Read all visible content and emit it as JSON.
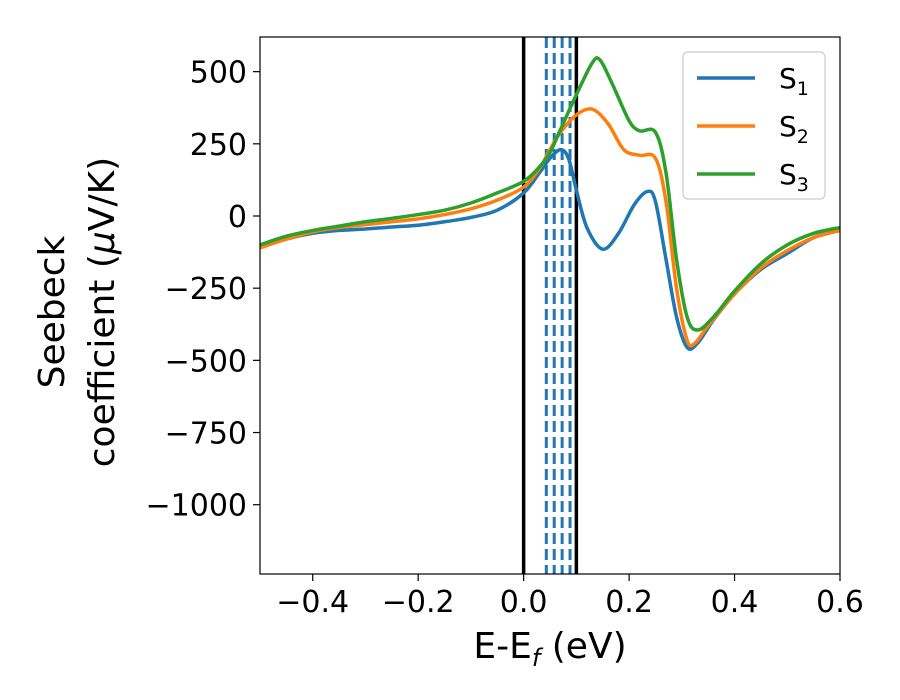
{
  "chart_data": {
    "type": "line",
    "title": "",
    "xlabel": {
      "main": "E-E",
      "sub": "f",
      "tail": " (eV)"
    },
    "ylabel": {
      "line1": "Seebeck",
      "line2_pre": "coefficient  (",
      "line2_mu": "μ",
      "line2_post": "V/K)"
    },
    "xlim": [
      -0.5,
      0.6
    ],
    "ylim": [
      -1240,
      620
    ],
    "xticks": [
      -0.4,
      -0.2,
      0.0,
      0.2,
      0.4,
      0.6
    ],
    "xtick_labels": [
      "−0.4",
      "−0.2",
      "0.0",
      "0.2",
      "0.4",
      "0.6"
    ],
    "yticks": [
      500,
      250,
      0,
      -250,
      -500,
      -750,
      -1000
    ],
    "ytick_labels": [
      "500",
      "250",
      "0",
      "−250",
      "−500",
      "−750",
      "−1000"
    ],
    "grid": false,
    "legend_position": "top-right",
    "vlines_solid": [
      0.0,
      0.1
    ],
    "vlines_dashed": [
      0.043,
      0.058,
      0.073,
      0.088
    ],
    "series": [
      {
        "name": "S",
        "sub": "1",
        "color": "#1f77b4",
        "points": [
          [
            -0.5,
            -110
          ],
          [
            -0.45,
            -80
          ],
          [
            -0.4,
            -60
          ],
          [
            -0.35,
            -50
          ],
          [
            -0.3,
            -45
          ],
          [
            -0.25,
            -38
          ],
          [
            -0.2,
            -32
          ],
          [
            -0.15,
            -20
          ],
          [
            -0.1,
            -5
          ],
          [
            -0.05,
            20
          ],
          [
            0.0,
            80
          ],
          [
            0.03,
            150
          ],
          [
            0.05,
            200
          ],
          [
            0.07,
            230
          ],
          [
            0.085,
            200
          ],
          [
            0.1,
            90
          ],
          [
            0.12,
            -40
          ],
          [
            0.15,
            -115
          ],
          [
            0.18,
            -60
          ],
          [
            0.21,
            40
          ],
          [
            0.235,
            85
          ],
          [
            0.25,
            50
          ],
          [
            0.27,
            -150
          ],
          [
            0.29,
            -350
          ],
          [
            0.31,
            -455
          ],
          [
            0.33,
            -440
          ],
          [
            0.36,
            -360
          ],
          [
            0.4,
            -270
          ],
          [
            0.45,
            -185
          ],
          [
            0.5,
            -130
          ],
          [
            0.55,
            -75
          ],
          [
            0.6,
            -50
          ]
        ]
      },
      {
        "name": "S",
        "sub": "2",
        "color": "#ff7f0e",
        "points": [
          [
            -0.5,
            -110
          ],
          [
            -0.45,
            -80
          ],
          [
            -0.4,
            -55
          ],
          [
            -0.35,
            -40
          ],
          [
            -0.3,
            -30
          ],
          [
            -0.25,
            -20
          ],
          [
            -0.2,
            -10
          ],
          [
            -0.15,
            5
          ],
          [
            -0.1,
            25
          ],
          [
            -0.05,
            55
          ],
          [
            0.0,
            100
          ],
          [
            0.03,
            165
          ],
          [
            0.05,
            230
          ],
          [
            0.07,
            290
          ],
          [
            0.1,
            350
          ],
          [
            0.13,
            370
          ],
          [
            0.16,
            320
          ],
          [
            0.19,
            230
          ],
          [
            0.22,
            210
          ],
          [
            0.25,
            200
          ],
          [
            0.27,
            50
          ],
          [
            0.29,
            -250
          ],
          [
            0.31,
            -430
          ],
          [
            0.325,
            -440
          ],
          [
            0.35,
            -380
          ],
          [
            0.4,
            -270
          ],
          [
            0.45,
            -180
          ],
          [
            0.5,
            -120
          ],
          [
            0.55,
            -75
          ],
          [
            0.6,
            -50
          ]
        ]
      },
      {
        "name": "S",
        "sub": "3",
        "color": "#2ca02c",
        "points": [
          [
            -0.5,
            -100
          ],
          [
            -0.45,
            -70
          ],
          [
            -0.4,
            -50
          ],
          [
            -0.35,
            -35
          ],
          [
            -0.3,
            -20
          ],
          [
            -0.25,
            -8
          ],
          [
            -0.2,
            5
          ],
          [
            -0.15,
            20
          ],
          [
            -0.1,
            45
          ],
          [
            -0.05,
            80
          ],
          [
            0.0,
            120
          ],
          [
            0.03,
            170
          ],
          [
            0.05,
            220
          ],
          [
            0.07,
            300
          ],
          [
            0.1,
            420
          ],
          [
            0.13,
            530
          ],
          [
            0.145,
            540
          ],
          [
            0.17,
            450
          ],
          [
            0.2,
            330
          ],
          [
            0.22,
            295
          ],
          [
            0.25,
            290
          ],
          [
            0.27,
            150
          ],
          [
            0.29,
            -150
          ],
          [
            0.31,
            -350
          ],
          [
            0.33,
            -395
          ],
          [
            0.36,
            -350
          ],
          [
            0.4,
            -260
          ],
          [
            0.45,
            -165
          ],
          [
            0.5,
            -100
          ],
          [
            0.55,
            -60
          ],
          [
            0.6,
            -40
          ]
        ]
      }
    ]
  }
}
